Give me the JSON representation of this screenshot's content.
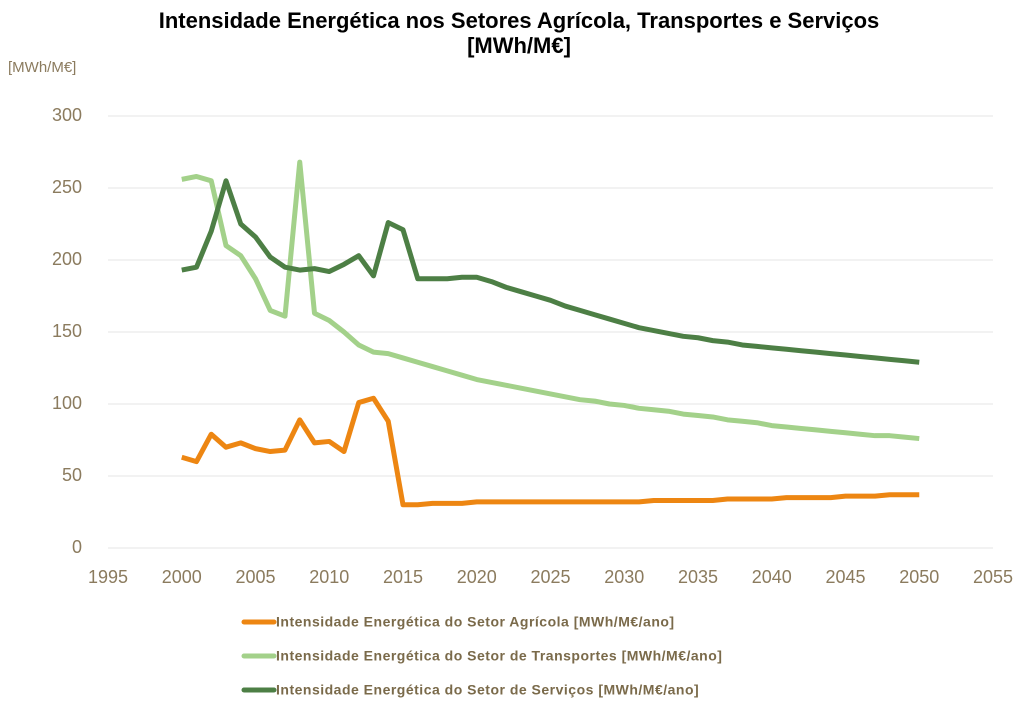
{
  "chart_data": {
    "type": "line",
    "title": "Intensidade Energética nos Setores Agrícola, Transportes e Serviços [MWh/M€]",
    "y_axis_label": "[MWh/M€]",
    "x": [
      2000,
      2001,
      2002,
      2003,
      2004,
      2005,
      2006,
      2007,
      2008,
      2009,
      2010,
      2011,
      2012,
      2013,
      2014,
      2015,
      2016,
      2017,
      2018,
      2019,
      2020,
      2021,
      2022,
      2023,
      2024,
      2025,
      2026,
      2027,
      2028,
      2029,
      2030,
      2031,
      2032,
      2033,
      2034,
      2035,
      2036,
      2037,
      2038,
      2039,
      2040,
      2041,
      2042,
      2043,
      2044,
      2045,
      2046,
      2047,
      2048,
      2049,
      2050
    ],
    "series": [
      {
        "name": "Intensidade Energética do Setor Agrícola [MWh/M€/ano]",
        "color": "#ed8612",
        "values": [
          63,
          60,
          79,
          70,
          73,
          69,
          67,
          68,
          89,
          73,
          74,
          67,
          101,
          104,
          88,
          30,
          30,
          31,
          31,
          31,
          32,
          32,
          32,
          32,
          32,
          32,
          32,
          32,
          32,
          32,
          32,
          32,
          33,
          33,
          33,
          33,
          33,
          34,
          34,
          34,
          34,
          35,
          35,
          35,
          35,
          36,
          36,
          36,
          37,
          37,
          37
        ]
      },
      {
        "name": "Intensidade Energética do Setor de Transportes [MWh/M€/ano]",
        "color": "#a3d18a",
        "values": [
          256,
          258,
          255,
          210,
          203,
          187,
          165,
          161,
          268,
          163,
          158,
          150,
          141,
          136,
          135,
          132,
          129,
          126,
          123,
          120,
          117,
          115,
          113,
          111,
          109,
          107,
          105,
          103,
          102,
          100,
          99,
          97,
          96,
          95,
          93,
          92,
          91,
          89,
          88,
          87,
          85,
          84,
          83,
          82,
          81,
          80,
          79,
          78,
          78,
          77,
          76
        ]
      },
      {
        "name": "Intensidade Energética do Setor de Serviços [MWh/M€/ano]",
        "color": "#4d7f45",
        "values": [
          193,
          195,
          220,
          255,
          225,
          216,
          202,
          195,
          193,
          194,
          192,
          197,
          203,
          189,
          226,
          221,
          187,
          187,
          187,
          188,
          188,
          185,
          181,
          178,
          175,
          172,
          168,
          165,
          162,
          159,
          156,
          153,
          151,
          149,
          147,
          146,
          144,
          143,
          141,
          140,
          139,
          138,
          137,
          136,
          135,
          134,
          133,
          132,
          131,
          130,
          129
        ]
      }
    ],
    "xlim": [
      1995,
      2055
    ],
    "xticks": [
      1995,
      2000,
      2005,
      2010,
      2015,
      2020,
      2025,
      2030,
      2035,
      2040,
      2045,
      2050,
      2055
    ],
    "ylim": [
      0,
      300
    ],
    "yticks": [
      0,
      50,
      100,
      150,
      200,
      250,
      300
    ],
    "grid": true,
    "legend": "bottom"
  }
}
